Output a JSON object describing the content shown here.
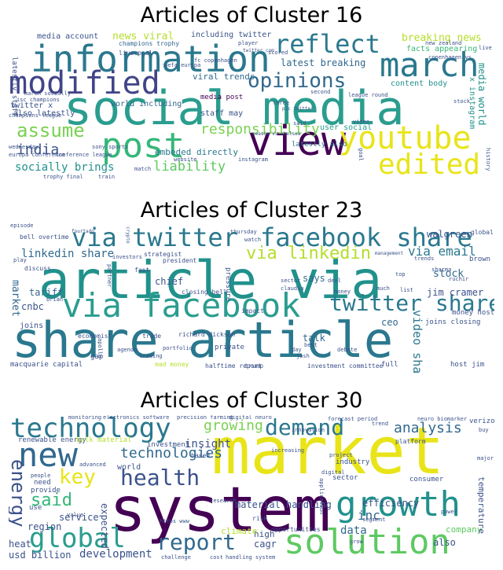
{
  "panels": [
    {
      "title": "Articles of Cluster 16",
      "words": [
        {
          "t": "social media",
          "c": "#2a9d8f"
        },
        {
          "t": "information",
          "c": "#2a788e"
        },
        {
          "t": "modified",
          "c": "#414487"
        },
        {
          "t": "march",
          "c": "#2a788e"
        },
        {
          "t": "view",
          "c": "#440154"
        },
        {
          "t": "post",
          "c": "#35b779"
        },
        {
          "t": "youtube",
          "c": "#e8e419"
        },
        {
          "t": "edited",
          "c": "#e8e419"
        },
        {
          "t": "reflect",
          "c": "#2a788e"
        },
        {
          "t": "opinions",
          "c": "#31688e"
        },
        {
          "t": "assume",
          "c": "#7ad151"
        },
        {
          "t": "responsibility",
          "c": "#7ad151"
        },
        {
          "t": "liability",
          "c": "#5ec962"
        },
        {
          "t": "india",
          "c": "#3b528b"
        },
        {
          "t": "socially brings",
          "c": "#21918c"
        },
        {
          "t": "breaking news",
          "c": "#b5de2b"
        },
        {
          "t": "news viral",
          "c": "#b5de2b"
        },
        {
          "t": "viral trends",
          "c": "#31688e"
        },
        {
          "t": "latest breaking",
          "c": "#31688e"
        },
        {
          "t": "including twitter",
          "c": "#3b528b"
        },
        {
          "t": "media account",
          "c": "#3b528b"
        },
        {
          "t": "facts appearing",
          "c": "#35b779"
        },
        {
          "t": "content body",
          "c": "#21918c"
        },
        {
          "t": "embeded directly",
          "c": "#2a788e"
        },
        {
          "t": "world including",
          "c": "#31688e"
        },
        {
          "t": "staff may",
          "c": "#3b528b"
        },
        {
          "t": "media post",
          "c": "#440154"
        },
        {
          "t": "user social",
          "c": "#2a9d8f"
        },
        {
          "t": "latestly also",
          "c": "#2a788e"
        },
        {
          "t": "twitter x",
          "c": "#3b528b"
        },
        {
          "t": "also latestly",
          "c": "#3b528b"
        },
        {
          "t": "media world",
          "c": "#21918c"
        },
        {
          "t": "x instagram",
          "c": "#21918c"
        },
        {
          "t": "latestly staff",
          "c": "#3b528b"
        },
        {
          "t": "champions trophy",
          "c": "#31688e"
        },
        {
          "t": "liverpool",
          "c": "#3b528b"
        },
        {
          "t": "uefa europa",
          "c": "#3b528b"
        },
        {
          "t": "fc copenhagen",
          "c": "#3b528b"
        },
        {
          "t": "copenhagen vs",
          "c": "#3b528b"
        },
        {
          "t": "new zealand",
          "c": "#3b528b"
        },
        {
          "t": "march socially",
          "c": "#3b528b"
        },
        {
          "t": "isc champions",
          "c": "#3b528b"
        },
        {
          "t": "europa conference",
          "c": "#3b528b"
        },
        {
          "t": "conference league",
          "c": "#3b528b"
        },
        {
          "t": "champions league",
          "c": "#3b528b"
        },
        {
          "t": "wednesday",
          "c": "#3b528b"
        },
        {
          "t": "sony sports",
          "c": "#3b528b"
        },
        {
          "t": "trophy final",
          "c": "#3b528b"
        },
        {
          "t": "train",
          "c": "#3b528b"
        },
        {
          "t": "match",
          "c": "#3b528b"
        },
        {
          "t": "website",
          "c": "#3b528b"
        },
        {
          "t": "instagram",
          "c": "#3b528b"
        },
        {
          "t": "season vs chelsea",
          "c": "#3b528b"
        },
        {
          "t": "scored",
          "c": "#3b528b"
        },
        {
          "t": "player",
          "c": "#3b528b"
        },
        {
          "t": "three",
          "c": "#3b528b"
        },
        {
          "t": "said",
          "c": "#3b528b"
        },
        {
          "t": "stock",
          "c": "#3b528b"
        },
        {
          "t": "live",
          "c": "#3b528b"
        },
        {
          "t": "video",
          "c": "#3b528b"
        },
        {
          "t": "second",
          "c": "#3b528b"
        },
        {
          "t": "league round",
          "c": "#3b528b"
        },
        {
          "t": "goal",
          "c": "#3b528b"
        },
        {
          "t": "history",
          "c": "#3b528b"
        },
        {
          "t": "twitter com",
          "c": "#3b528b"
        },
        {
          "t": "pic twitter",
          "c": "#3b528b"
        }
      ]
    },
    {
      "title": "Articles of Cluster 23",
      "words": [
        {
          "t": "article via",
          "c": "#21918c"
        },
        {
          "t": "share article",
          "c": "#2a788e"
        },
        {
          "t": "via facebook",
          "c": "#2a9d8f"
        },
        {
          "t": "facebook share",
          "c": "#2a788e"
        },
        {
          "t": "via twitter",
          "c": "#2a788e"
        },
        {
          "t": "twitter share",
          "c": "#2a788e"
        },
        {
          "t": "via linkedin",
          "c": "#b5de2b"
        },
        {
          "t": "linkedin share",
          "c": "#31688e"
        },
        {
          "t": "via email",
          "c": "#2a788e"
        },
        {
          "t": "video share",
          "c": "#2a788e"
        },
        {
          "t": "jim cramer",
          "c": "#3b528b"
        },
        {
          "t": "walgreen",
          "c": "#3b528b"
        },
        {
          "t": "stock",
          "c": "#31688e"
        },
        {
          "t": "market",
          "c": "#31688e"
        },
        {
          "t": "tariff",
          "c": "#31688e"
        },
        {
          "t": "cnbc",
          "c": "#3b528b"
        },
        {
          "t": "chief",
          "c": "#3b528b"
        },
        {
          "t": "says",
          "c": "#31688e"
        },
        {
          "t": "talk",
          "c": "#31688e"
        },
        {
          "t": "ceo",
          "c": "#31688e"
        },
        {
          "t": "joins",
          "c": "#3b528b"
        },
        {
          "t": "global",
          "c": "#3b528b"
        },
        {
          "t": "brown",
          "c": "#3b528b"
        },
        {
          "t": "money host",
          "c": "#3b528b"
        },
        {
          "t": "joins closing",
          "c": "#3b528b"
        },
        {
          "t": "host jim",
          "c": "#3b528b"
        },
        {
          "t": "full",
          "c": "#3b528b"
        },
        {
          "t": "macquarie capital",
          "c": "#3b528b"
        },
        {
          "t": "halftime report",
          "c": "#3b528b"
        },
        {
          "t": "investment committee",
          "c": "#3b528b"
        },
        {
          "t": "mad money",
          "c": "#b5de2b"
        },
        {
          "t": "richard dickson",
          "c": "#3b528b"
        },
        {
          "t": "closing bell",
          "c": "#3b528b"
        },
        {
          "t": "private",
          "c": "#3b528b"
        },
        {
          "t": "trade",
          "c": "#3b528b"
        },
        {
          "t": "economist",
          "c": "#3b528b"
        },
        {
          "t": "impact",
          "c": "#3b528b"
        },
        {
          "t": "gap",
          "c": "#3b528b"
        },
        {
          "t": "trump",
          "c": "#3b528b"
        },
        {
          "t": "pressure",
          "c": "#3b528b"
        },
        {
          "t": "strategist",
          "c": "#3b528b"
        },
        {
          "t": "president",
          "c": "#3b528b"
        },
        {
          "t": "fast",
          "c": "#3b528b"
        },
        {
          "t": "discuss",
          "c": "#3b528b"
        },
        {
          "t": "bell overtime",
          "c": "#3b528b"
        },
        {
          "t": "fourtado",
          "c": "#3b528b"
        },
        {
          "t": "thursday",
          "c": "#3b528b"
        },
        {
          "t": "watch",
          "c": "#3b528b"
        },
        {
          "t": "sector",
          "c": "#3b528b"
        },
        {
          "t": "claudia",
          "c": "#3b528b"
        },
        {
          "t": "deal",
          "c": "#3b528b"
        },
        {
          "t": "money",
          "c": "#3b528b"
        },
        {
          "t": "list",
          "c": "#3b528b"
        },
        {
          "t": "much",
          "c": "#3b528b"
        },
        {
          "t": "day",
          "c": "#3b528b"
        },
        {
          "t": "best",
          "c": "#3b528b"
        },
        {
          "t": "debate",
          "c": "#3b528b"
        },
        {
          "t": "josh",
          "c": "#3b528b"
        },
        {
          "t": "trading",
          "c": "#3b528b"
        },
        {
          "t": "agenda",
          "c": "#3b528b"
        },
        {
          "t": "portfolio",
          "c": "#3b528b"
        },
        {
          "t": "apollo",
          "c": "#3b528b"
        },
        {
          "t": "brian",
          "c": "#3b528b"
        },
        {
          "t": "play",
          "c": "#3b528b"
        },
        {
          "t": "episode",
          "c": "#3b528b"
        },
        {
          "t": "top",
          "c": "#3b528b"
        },
        {
          "t": "sharma",
          "c": "#3b528b"
        },
        {
          "t": "ruchir",
          "c": "#3b528b"
        },
        {
          "t": "trends",
          "c": "#3b528b"
        },
        {
          "t": "management",
          "c": "#3b528b"
        },
        {
          "t": "investors",
          "c": "#3b528b"
        },
        {
          "t": "partner",
          "c": "#3b528b"
        },
        {
          "t": "crypto",
          "c": "#3b528b"
        }
      ]
    },
    {
      "title": "Articles of Cluster 30",
      "words": [
        {
          "t": "market",
          "c": "#e8e419"
        },
        {
          "t": "system",
          "c": "#440154"
        },
        {
          "t": "solution",
          "c": "#5ec962"
        },
        {
          "t": "growth",
          "c": "#21918c"
        },
        {
          "t": "new",
          "c": "#31688e"
        },
        {
          "t": "technology",
          "c": "#2a788e"
        },
        {
          "t": "demand",
          "c": "#2a788e"
        },
        {
          "t": "global",
          "c": "#2a9d8f"
        },
        {
          "t": "report",
          "c": "#31688e"
        },
        {
          "t": "health",
          "c": "#3b528b"
        },
        {
          "t": "key",
          "c": "#e8e419"
        },
        {
          "t": "energy",
          "c": "#3b528b"
        },
        {
          "t": "said",
          "c": "#35b779"
        },
        {
          "t": "technologies",
          "c": "#31688e"
        },
        {
          "t": "growing",
          "c": "#7ad151"
        },
        {
          "t": "analysis",
          "c": "#31688e"
        },
        {
          "t": "insight",
          "c": "#3b528b"
        },
        {
          "t": "development",
          "c": "#3b528b"
        },
        {
          "t": "data",
          "c": "#31688e"
        },
        {
          "t": "inc",
          "c": "#31688e"
        },
        {
          "t": "material handling",
          "c": "#3b528b"
        },
        {
          "t": "efficiency",
          "c": "#3b528b"
        },
        {
          "t": "service",
          "c": "#3b528b"
        },
        {
          "t": "region",
          "c": "#3b528b"
        },
        {
          "t": "heat",
          "c": "#3b528b"
        },
        {
          "t": "usd billion",
          "c": "#3b528b"
        },
        {
          "t": "also",
          "c": "#3b528b"
        },
        {
          "t": "company",
          "c": "#5ec962"
        },
        {
          "t": "consumer",
          "c": "#3b528b"
        },
        {
          "t": "temperature",
          "c": "#3b528b"
        },
        {
          "t": "verizon",
          "c": "#3b528b"
        },
        {
          "t": "expected",
          "c": "#3b528b"
        },
        {
          "t": "cagr",
          "c": "#3b528b"
        },
        {
          "t": "high",
          "c": "#3b528b"
        },
        {
          "t": "climate",
          "c": "#b5de2b"
        },
        {
          "t": "world",
          "c": "#3b528b"
        },
        {
          "t": "renewable energy",
          "c": "#3b528b"
        },
        {
          "t": "bulk material",
          "c": "#b5de2b"
        },
        {
          "t": "investment",
          "c": "#3b528b"
        },
        {
          "t": "need",
          "c": "#3b528b"
        },
        {
          "t": "provide",
          "c": "#3b528b"
        },
        {
          "t": "use",
          "c": "#3b528b"
        },
        {
          "t": "industry",
          "c": "#3b528b"
        },
        {
          "t": "sector",
          "c": "#3b528b"
        },
        {
          "t": "platform",
          "c": "#3b528b"
        },
        {
          "t": "opportunities",
          "c": "#3b528b"
        },
        {
          "t": "risk",
          "c": "#3b528b"
        },
        {
          "t": "based",
          "c": "#3b528b"
        },
        {
          "t": "advanced",
          "c": "#3b528b"
        },
        {
          "t": "people",
          "c": "#3b528b"
        },
        {
          "t": "electronics software",
          "c": "#3b528b"
        },
        {
          "t": "precision farming",
          "c": "#3b528b"
        },
        {
          "t": "digital neuro",
          "c": "#3b528b"
        },
        {
          "t": "neuro biomarker",
          "c": "#3b528b"
        },
        {
          "t": "forecast period",
          "c": "#3b528b"
        },
        {
          "t": "handling system",
          "c": "#3b528b"
        },
        {
          "t": "power",
          "c": "#3b528b"
        },
        {
          "t": "major",
          "c": "#3b528b"
        },
        {
          "t": "buy",
          "c": "#3b528b"
        },
        {
          "t": "project",
          "c": "#3b528b"
        },
        {
          "t": "increasing",
          "c": "#3b528b"
        },
        {
          "t": "application",
          "c": "#3b528b"
        },
        {
          "t": "research",
          "c": "#3b528b"
        },
        {
          "t": "digital",
          "c": "#3b528b"
        },
        {
          "t": "segment",
          "c": "#3b528b"
        },
        {
          "t": "https www",
          "c": "#3b528b"
        },
        {
          "t": "challenge",
          "c": "#3b528b"
        },
        {
          "t": "innovation",
          "c": "#3b528b"
        },
        {
          "t": "monitoring",
          "c": "#3b528b"
        },
        {
          "t": "trend",
          "c": "#3b528b"
        },
        {
          "t": "grow",
          "c": "#3b528b"
        },
        {
          "t": "value",
          "c": "#3b528b"
        },
        {
          "t": "cost",
          "c": "#3b528b"
        }
      ]
    }
  ]
}
